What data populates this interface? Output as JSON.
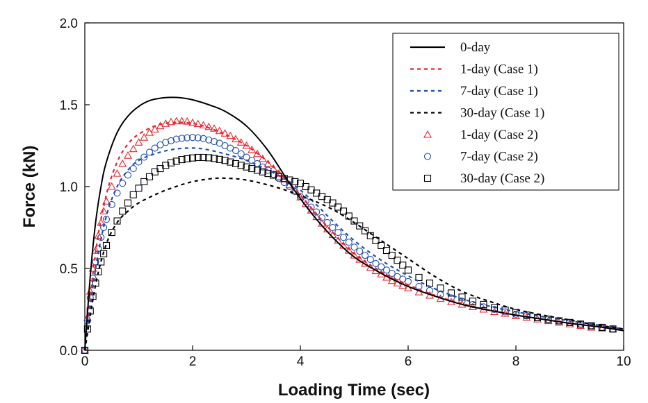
{
  "chart_data": {
    "type": "line",
    "xlabel": "Loading Time (sec)",
    "ylabel": "Force (kN)",
    "xlim": [
      0,
      10
    ],
    "ylim": [
      0,
      2.0
    ],
    "xticks": [
      0,
      2,
      4,
      6,
      8,
      10
    ],
    "xtick_labels": [
      "0",
      "2",
      "4",
      "6",
      "8",
      "10"
    ],
    "yticks": [
      0,
      0.5,
      1.0,
      1.5,
      2.0
    ],
    "ytick_labels": [
      "0.0",
      "0.5",
      "1.0",
      "1.5",
      "2.0"
    ],
    "grid": false,
    "legend_position": "top-right",
    "series": [
      {
        "name": "0-day",
        "style": "solid",
        "marker": "none",
        "color": "#000000",
        "x": [
          0,
          0.1,
          0.2,
          0.3,
          0.4,
          0.6,
          0.8,
          1.0,
          1.2,
          1.4,
          1.6,
          1.8,
          2.0,
          2.3,
          2.6,
          3.0,
          3.4,
          3.8,
          4.2,
          4.6,
          5.0,
          5.5,
          6.0,
          6.5,
          7.0,
          7.5,
          8.0,
          8.5,
          9.0,
          9.5,
          10.0
        ],
        "y": [
          0,
          0.45,
          0.78,
          1.0,
          1.15,
          1.33,
          1.43,
          1.49,
          1.525,
          1.54,
          1.545,
          1.542,
          1.53,
          1.5,
          1.46,
          1.37,
          1.22,
          1.02,
          0.84,
          0.69,
          0.57,
          0.47,
          0.39,
          0.33,
          0.28,
          0.245,
          0.215,
          0.19,
          0.165,
          0.145,
          0.12
        ]
      },
      {
        "name": "1-day (Case 1)",
        "style": "dashed",
        "marker": "none",
        "color": "#e8232b",
        "x": [
          0,
          0.2,
          0.4,
          0.6,
          0.8,
          1.0,
          1.3,
          1.6,
          1.9,
          2.2,
          2.6,
          3.0,
          3.4,
          3.8,
          4.2,
          4.6,
          5.0,
          5.5,
          6.0,
          6.5,
          7.0,
          7.5,
          8.0,
          8.5,
          9.0,
          9.5,
          10.0
        ],
        "y": [
          0,
          0.6,
          0.95,
          1.15,
          1.26,
          1.32,
          1.37,
          1.39,
          1.39,
          1.37,
          1.32,
          1.25,
          1.15,
          1.02,
          0.87,
          0.72,
          0.59,
          0.48,
          0.4,
          0.335,
          0.285,
          0.245,
          0.215,
          0.19,
          0.165,
          0.145,
          0.125
        ]
      },
      {
        "name": "7-day (Case 1)",
        "style": "dashed",
        "marker": "none",
        "color": "#1f4db3",
        "x": [
          0,
          0.2,
          0.4,
          0.6,
          0.8,
          1.0,
          1.3,
          1.6,
          1.9,
          2.2,
          2.6,
          3.0,
          3.4,
          3.8,
          4.2,
          4.6,
          5.0,
          5.5,
          6.0,
          6.5,
          7.0,
          7.5,
          8.0,
          8.5,
          9.0,
          9.5,
          10.0
        ],
        "y": [
          0,
          0.5,
          0.82,
          1.0,
          1.1,
          1.16,
          1.2,
          1.225,
          1.235,
          1.23,
          1.2,
          1.16,
          1.1,
          1.03,
          0.92,
          0.79,
          0.67,
          0.55,
          0.455,
          0.375,
          0.315,
          0.27,
          0.235,
          0.205,
          0.18,
          0.155,
          0.13
        ]
      },
      {
        "name": "30-day (Case 1)",
        "style": "dashed",
        "marker": "none",
        "color": "#000000",
        "x": [
          0,
          0.2,
          0.4,
          0.6,
          0.8,
          1.0,
          1.3,
          1.6,
          2.0,
          2.4,
          2.7,
          3.0,
          3.4,
          3.8,
          4.2,
          4.6,
          5.0,
          5.5,
          6.0,
          6.5,
          7.0,
          7.5,
          8.0,
          8.5,
          9.0,
          9.5,
          10.0
        ],
        "y": [
          0,
          0.4,
          0.65,
          0.78,
          0.85,
          0.9,
          0.95,
          0.99,
          1.03,
          1.05,
          1.05,
          1.04,
          1.01,
          0.97,
          0.92,
          0.86,
          0.78,
          0.67,
          0.56,
          0.45,
          0.36,
          0.3,
          0.25,
          0.215,
          0.185,
          0.155,
          0.13
        ]
      },
      {
        "name": "1-day (Case 2)",
        "style": "none",
        "marker": "triangle",
        "color": "#e8232b",
        "x": [
          0,
          0.05,
          0.1,
          0.15,
          0.2,
          0.25,
          0.3,
          0.35,
          0.4,
          0.5,
          0.6,
          0.7,
          0.8,
          0.9,
          1.0,
          1.1,
          1.2,
          1.3,
          1.4,
          1.5,
          1.6,
          1.7,
          1.8,
          1.9,
          2.0,
          2.1,
          2.2,
          2.3,
          2.4,
          2.5,
          2.6,
          2.7,
          2.8,
          2.9,
          3.0,
          3.1,
          3.2,
          3.3,
          3.4,
          3.5,
          3.6,
          3.7,
          3.8,
          3.9,
          4.0,
          4.1,
          4.2,
          4.3,
          4.4,
          4.5,
          4.6,
          4.7,
          4.8,
          4.9,
          5.0,
          5.1,
          5.2,
          5.3,
          5.4,
          5.5,
          5.6,
          5.7,
          5.8,
          5.9,
          6.0,
          6.2,
          6.4,
          6.6,
          6.8,
          7.0,
          7.2,
          7.4,
          7.6,
          7.8,
          8.0,
          8.2,
          8.4,
          8.6,
          8.8,
          9.0,
          9.2,
          9.4,
          9.6,
          9.8
        ],
        "y": [
          0,
          0.2,
          0.36,
          0.5,
          0.61,
          0.7,
          0.78,
          0.85,
          0.91,
          1.0,
          1.08,
          1.14,
          1.19,
          1.23,
          1.27,
          1.3,
          1.33,
          1.35,
          1.37,
          1.385,
          1.395,
          1.4,
          1.4,
          1.398,
          1.39,
          1.383,
          1.375,
          1.365,
          1.355,
          1.34,
          1.325,
          1.31,
          1.29,
          1.27,
          1.25,
          1.225,
          1.2,
          1.17,
          1.14,
          1.11,
          1.08,
          1.045,
          1.01,
          0.975,
          0.935,
          0.895,
          0.855,
          0.815,
          0.775,
          0.74,
          0.705,
          0.67,
          0.64,
          0.61,
          0.58,
          0.555,
          0.53,
          0.505,
          0.485,
          0.465,
          0.445,
          0.425,
          0.41,
          0.395,
          0.38,
          0.355,
          0.335,
          0.315,
          0.295,
          0.28,
          0.265,
          0.25,
          0.235,
          0.225,
          0.21,
          0.2,
          0.19,
          0.18,
          0.17,
          0.16,
          0.15,
          0.14,
          0.135,
          0.13
        ]
      },
      {
        "name": "7-day (Case 2)",
        "style": "none",
        "marker": "circle",
        "color": "#1f4db3",
        "x": [
          0,
          0.05,
          0.1,
          0.15,
          0.2,
          0.25,
          0.3,
          0.35,
          0.4,
          0.5,
          0.6,
          0.7,
          0.8,
          0.9,
          1.0,
          1.1,
          1.2,
          1.3,
          1.4,
          1.5,
          1.6,
          1.7,
          1.8,
          1.9,
          2.0,
          2.1,
          2.2,
          2.3,
          2.4,
          2.5,
          2.6,
          2.7,
          2.8,
          2.9,
          3.0,
          3.1,
          3.2,
          3.3,
          3.4,
          3.5,
          3.6,
          3.7,
          3.8,
          3.9,
          4.0,
          4.1,
          4.2,
          4.3,
          4.4,
          4.5,
          4.6,
          4.7,
          4.8,
          4.9,
          5.0,
          5.1,
          5.2,
          5.3,
          5.4,
          5.5,
          5.6,
          5.7,
          5.8,
          5.9,
          6.0,
          6.2,
          6.4,
          6.6,
          6.8,
          7.0,
          7.2,
          7.4,
          7.6,
          7.8,
          8.0,
          8.2,
          8.4,
          8.6,
          8.8,
          9.0,
          9.2,
          9.4,
          9.6,
          9.8
        ],
        "y": [
          0,
          0.18,
          0.32,
          0.44,
          0.54,
          0.62,
          0.69,
          0.75,
          0.8,
          0.89,
          0.96,
          1.02,
          1.07,
          1.11,
          1.15,
          1.18,
          1.21,
          1.235,
          1.255,
          1.27,
          1.28,
          1.29,
          1.295,
          1.298,
          1.3,
          1.298,
          1.293,
          1.285,
          1.275,
          1.265,
          1.25,
          1.235,
          1.22,
          1.2,
          1.18,
          1.16,
          1.14,
          1.12,
          1.1,
          1.075,
          1.05,
          1.025,
          1.0,
          0.97,
          0.94,
          0.91,
          0.875,
          0.845,
          0.81,
          0.78,
          0.75,
          0.72,
          0.69,
          0.66,
          0.63,
          0.605,
          0.58,
          0.555,
          0.53,
          0.51,
          0.49,
          0.47,
          0.45,
          0.435,
          0.42,
          0.39,
          0.365,
          0.34,
          0.32,
          0.3,
          0.28,
          0.265,
          0.25,
          0.235,
          0.22,
          0.21,
          0.2,
          0.19,
          0.18,
          0.17,
          0.16,
          0.15,
          0.14,
          0.13
        ]
      },
      {
        "name": "30-day (Case 2)",
        "style": "none",
        "marker": "square",
        "color": "#000000",
        "x": [
          0,
          0.05,
          0.1,
          0.15,
          0.2,
          0.25,
          0.3,
          0.35,
          0.4,
          0.5,
          0.6,
          0.7,
          0.8,
          0.9,
          1.0,
          1.1,
          1.2,
          1.3,
          1.4,
          1.5,
          1.6,
          1.7,
          1.8,
          1.9,
          2.0,
          2.1,
          2.2,
          2.3,
          2.4,
          2.5,
          2.6,
          2.7,
          2.8,
          2.9,
          3.0,
          3.1,
          3.2,
          3.3,
          3.4,
          3.5,
          3.6,
          3.7,
          3.8,
          3.9,
          4.0,
          4.1,
          4.2,
          4.3,
          4.4,
          4.5,
          4.6,
          4.7,
          4.8,
          4.9,
          5.0,
          5.1,
          5.2,
          5.3,
          5.4,
          5.5,
          5.6,
          5.7,
          5.8,
          5.9,
          6.0,
          6.2,
          6.4,
          6.6,
          6.8,
          7.0,
          7.2,
          7.4,
          7.6,
          7.8,
          8.0,
          8.2,
          8.4,
          8.6,
          8.8,
          9.0,
          9.2,
          9.4,
          9.6,
          9.8
        ],
        "y": [
          0,
          0.13,
          0.24,
          0.33,
          0.41,
          0.48,
          0.54,
          0.59,
          0.64,
          0.72,
          0.79,
          0.85,
          0.9,
          0.95,
          0.99,
          1.03,
          1.06,
          1.09,
          1.11,
          1.13,
          1.145,
          1.155,
          1.165,
          1.17,
          1.175,
          1.178,
          1.178,
          1.176,
          1.172,
          1.166,
          1.16,
          1.15,
          1.14,
          1.13,
          1.12,
          1.11,
          1.1,
          1.09,
          1.08,
          1.07,
          1.06,
          1.05,
          1.04,
          1.03,
          1.02,
          1.0,
          0.98,
          0.96,
          0.94,
          0.92,
          0.9,
          0.875,
          0.85,
          0.82,
          0.79,
          0.76,
          0.73,
          0.7,
          0.67,
          0.64,
          0.61,
          0.58,
          0.55,
          0.52,
          0.49,
          0.445,
          0.41,
          0.38,
          0.35,
          0.325,
          0.3,
          0.28,
          0.26,
          0.245,
          0.23,
          0.215,
          0.2,
          0.19,
          0.18,
          0.17,
          0.16,
          0.15,
          0.14,
          0.13
        ]
      }
    ]
  }
}
